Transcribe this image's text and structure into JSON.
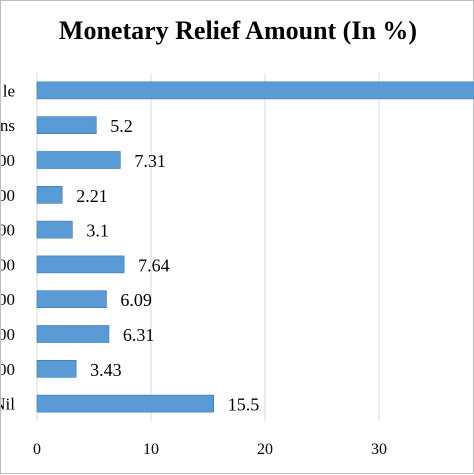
{
  "chart_data": {
    "type": "bar",
    "orientation": "horizontal",
    "title": "Monetary Relief Amount (In %)",
    "categories": [
      "Nil",
      "00",
      "00",
      "00",
      "00",
      "00",
      "00",
      "00",
      "ns",
      "le"
    ],
    "values": [
      15.5,
      3.43,
      6.31,
      6.09,
      7.64,
      3.1,
      2.21,
      7.31,
      5.2,
      42
    ],
    "data_labels": [
      "15.5",
      "3.43",
      "6.31",
      "6.09",
      "7.64",
      "3.1",
      "2.21",
      "7.31",
      "5.2",
      ""
    ],
    "xlabel": "",
    "ylabel": "",
    "xlim": [
      0,
      45
    ],
    "x_ticks": [
      0,
      10,
      20,
      30
    ],
    "x_tick_labels": [
      "0",
      "10",
      "20",
      "30"
    ],
    "grid": true,
    "legend": "none",
    "bar_color": "#5b9bd5",
    "bar_edge_color": "#2e75b6",
    "gridline_color": "#d9d9d9"
  }
}
